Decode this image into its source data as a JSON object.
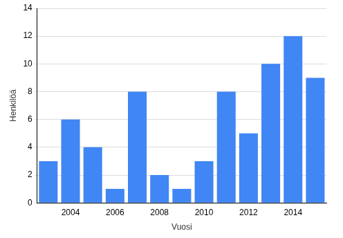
{
  "chart_data": {
    "type": "bar",
    "x_label": "Vuosi",
    "y_label": "Henkilöä",
    "categories": [
      null,
      "2004",
      null,
      "2006",
      null,
      "2008",
      null,
      "2010",
      null,
      "2012",
      null,
      "2014",
      null
    ],
    "values": [
      3,
      6,
      4,
      1,
      8,
      2,
      1,
      3,
      8,
      5,
      10,
      12,
      9
    ],
    "color": "#4086f4",
    "ylim": [
      0,
      14
    ],
    "yticks": [
      0,
      2,
      4,
      6,
      8,
      10,
      12,
      14
    ],
    "grid": true
  }
}
